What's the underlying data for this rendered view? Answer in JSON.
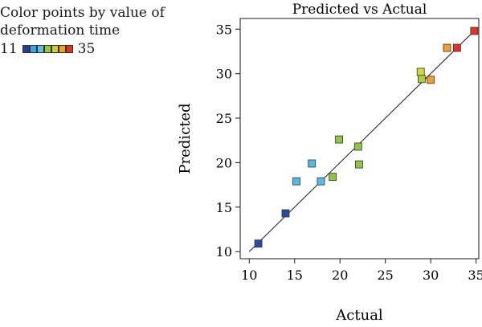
{
  "legend": {
    "line1": "Color points by value of",
    "line2": "deformation time",
    "min_label": "11",
    "max_label": "35",
    "swatch_colors": [
      "#2040a0",
      "#36a8e8",
      "#60c0e8",
      "#98c838",
      "#c8d030",
      "#f0a020",
      "#e83020"
    ]
  },
  "chart_data": {
    "type": "scatter",
    "title": "Predicted vs Actual",
    "xlabel": "Actual",
    "ylabel": "Predicted",
    "xlim": [
      9,
      35.3
    ],
    "ylim": [
      9.2,
      36.2
    ],
    "xticks": [
      10,
      15,
      20,
      25,
      30,
      35
    ],
    "yticks": [
      10,
      15,
      20,
      25,
      30,
      35
    ],
    "reference_line": {
      "from": [
        10,
        10
      ],
      "to": [
        35,
        35
      ]
    },
    "points": [
      {
        "x": 11,
        "y": 10.9,
        "color": "#2a4aa8"
      },
      {
        "x": 14,
        "y": 14.3,
        "color": "#2a4aa8"
      },
      {
        "x": 15.2,
        "y": 17.9,
        "color": "#52bce8"
      },
      {
        "x": 16.9,
        "y": 19.9,
        "color": "#52bce8"
      },
      {
        "x": 17.9,
        "y": 17.9,
        "color": "#52bce8"
      },
      {
        "x": 19.2,
        "y": 18.4,
        "color": "#8cc840"
      },
      {
        "x": 19.9,
        "y": 22.6,
        "color": "#8cc840"
      },
      {
        "x": 22,
        "y": 21.8,
        "color": "#8cc840"
      },
      {
        "x": 22.1,
        "y": 19.8,
        "color": "#8cc840"
      },
      {
        "x": 28.9,
        "y": 30.2,
        "color": "#d0d838"
      },
      {
        "x": 29.0,
        "y": 29.4,
        "color": "#b0cc38"
      },
      {
        "x": 30.0,
        "y": 29.3,
        "color": "#f0a028"
      },
      {
        "x": 31.8,
        "y": 32.9,
        "color": "#f0a028"
      },
      {
        "x": 32.9,
        "y": 32.9,
        "color": "#e83028"
      },
      {
        "x": 34.8,
        "y": 34.8,
        "color": "#e83028"
      }
    ]
  }
}
